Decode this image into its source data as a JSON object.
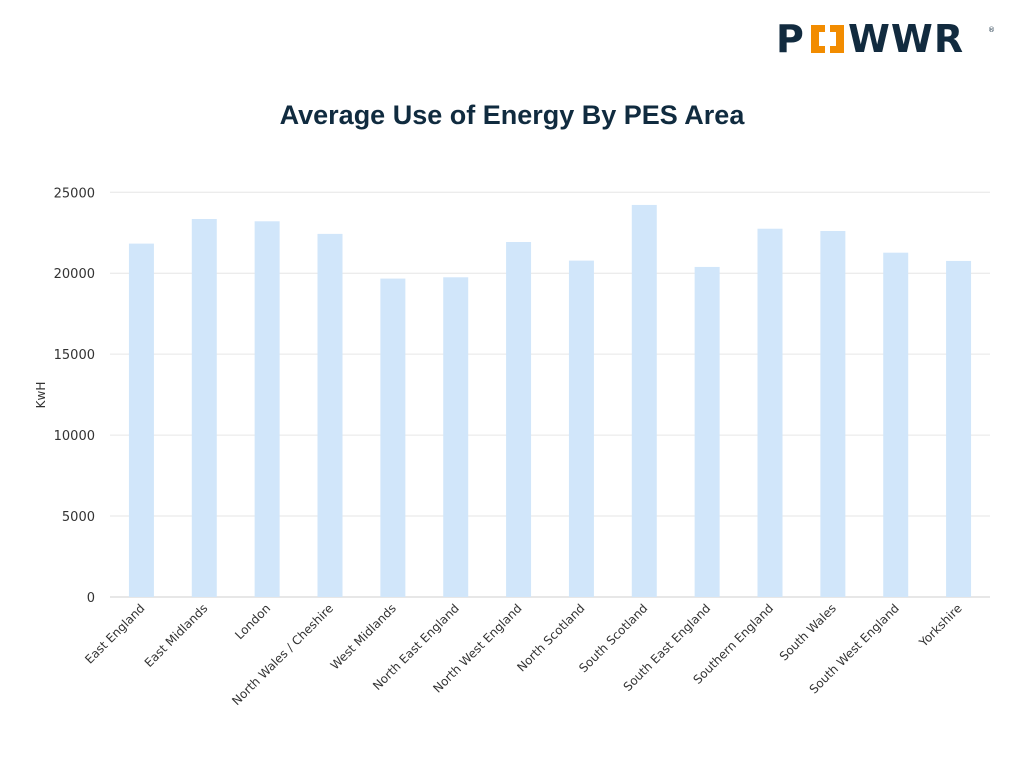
{
  "brand": {
    "logo_text": "POWWR",
    "colors": {
      "navy": "#122b3f",
      "orange": "#f28c00"
    }
  },
  "chart_data": {
    "type": "bar",
    "title": "Average Use of Energy By PES Area",
    "xlabel": "",
    "ylabel": "KwH",
    "ylim": [
      0,
      25000
    ],
    "yticks": [
      0,
      5000,
      10000,
      15000,
      20000,
      25000
    ],
    "grid": true,
    "bar_color": "#d1e6fa",
    "categories": [
      "East England",
      "East Midlands",
      "London",
      "North Wales / Cheshire",
      "West Midlands",
      "North East England",
      "North West England",
      "North Scotland",
      "South Scotland",
      "South East England",
      "Southern England",
      "South Wales",
      "South West England",
      "Yorkshire"
    ],
    "values": [
      21830,
      23350,
      23210,
      22430,
      19670,
      19750,
      21930,
      20780,
      24220,
      20390,
      22750,
      22610,
      21270,
      20760
    ]
  }
}
